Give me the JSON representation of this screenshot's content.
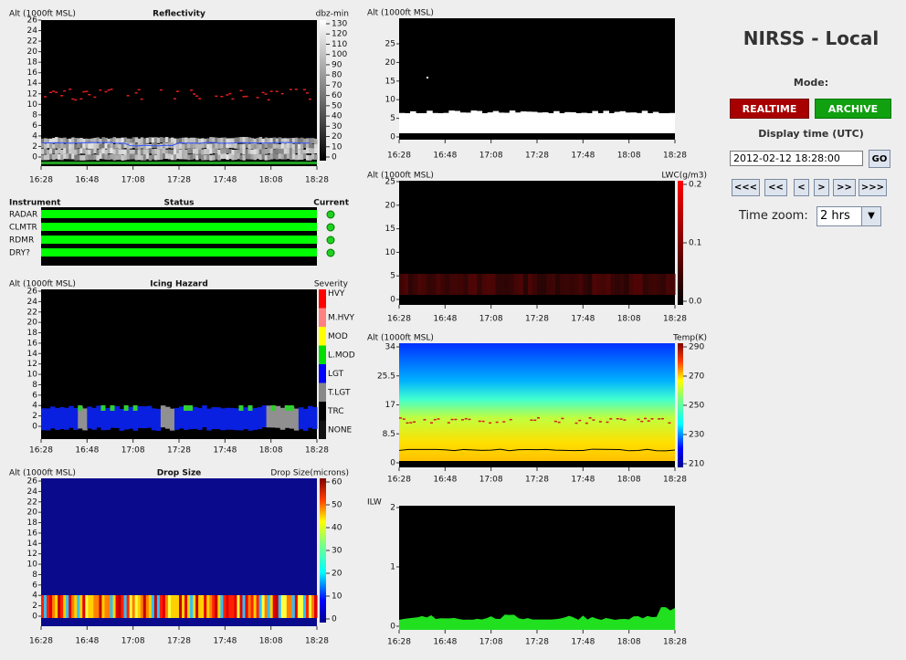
{
  "header": {
    "title": "NIRSS - Local",
    "mode_label": "Mode:",
    "realtime": "REALTIME",
    "archive": "ARCHIVE",
    "display_time_label": "Display time (UTC)",
    "display_time": "2012-02-12 18:28:00",
    "go": "GO",
    "nav": [
      "<<<",
      "<<",
      "<",
      ">",
      ">>",
      ">>>"
    ],
    "time_zoom_label": "Time zoom:",
    "time_zoom": "2 hrs"
  },
  "time_ticks": [
    "16:28",
    "16:48",
    "17:08",
    "17:28",
    "17:48",
    "18:08",
    "18:28"
  ],
  "status": {
    "headers": [
      "Instrument",
      "Status",
      "Current"
    ],
    "rows": [
      "RADAR",
      "CLMTR",
      "RDMR",
      "DRY?"
    ]
  },
  "panels": [
    {
      "y_label": "Alt (1000ft MSL)",
      "title": "Reflectivity",
      "scale_label": "dbz-min",
      "yticks": [
        "0",
        "2",
        "4",
        "6",
        "8",
        "10",
        "12",
        "14",
        "16",
        "18",
        "20",
        "22",
        "24",
        "26"
      ],
      "scale_ticks": [
        "0",
        "10",
        "20",
        "30",
        "40",
        "50",
        "60",
        "70",
        "80",
        "90",
        "100",
        "110",
        "120",
        "130"
      ]
    },
    {
      "y_label": "Alt (1000ft MSL)",
      "title": "Icing Hazard",
      "scale_label": "Severity",
      "yticks": [
        "0",
        "2",
        "4",
        "6",
        "8",
        "10",
        "12",
        "14",
        "16",
        "18",
        "20",
        "22",
        "24",
        "26"
      ],
      "scale_ticks": [
        "NONE",
        "TRC",
        "T.LGT",
        "LGT",
        "L.MOD",
        "MOD",
        "M.HVY",
        "HVY"
      ]
    },
    {
      "y_label": "Alt (1000ft MSL)",
      "title": "Drop Size",
      "scale_label": "Drop Size(microns)",
      "yticks": [
        "0",
        "2",
        "4",
        "6",
        "8",
        "10",
        "12",
        "14",
        "16",
        "18",
        "20",
        "22",
        "24",
        "26"
      ],
      "scale_ticks": [
        "0",
        "10",
        "20",
        "30",
        "40",
        "50",
        "60"
      ]
    },
    {
      "y_label": "Alt (1000ft MSL)",
      "yticks": [
        "0",
        "5",
        "10",
        "15",
        "20",
        "25"
      ]
    },
    {
      "y_label": "Alt (1000ft MSL)",
      "scale_label": "LWC(g/m3)",
      "yticks": [
        "0",
        "5",
        "10",
        "15",
        "20",
        "25"
      ],
      "scale_ticks": [
        "0.0",
        "0.1",
        "0.2"
      ]
    },
    {
      "y_label": "Alt (1000ft MSL)",
      "scale_label": "Temp(K)",
      "yticks": [
        "0",
        "8.5",
        "17",
        "25.5",
        "34"
      ],
      "scale_ticks": [
        "210",
        "230",
        "250",
        "270",
        "290"
      ]
    },
    {
      "y_label": "ILW",
      "yticks": [
        "0",
        "1",
        "2"
      ]
    }
  ]
}
